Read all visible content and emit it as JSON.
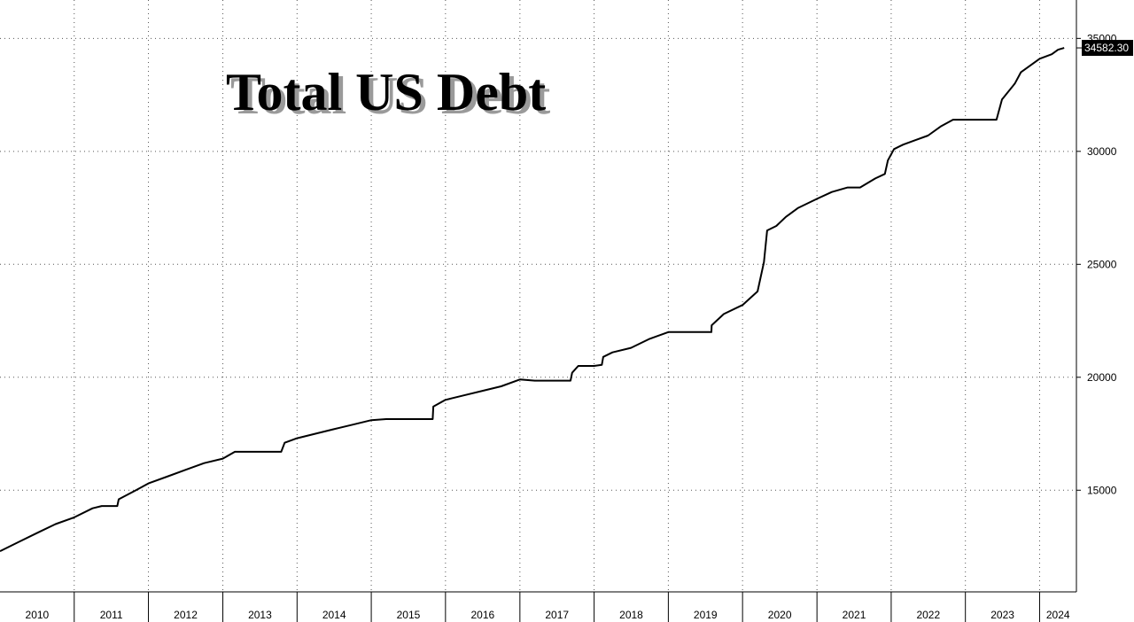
{
  "chart_data": {
    "type": "line",
    "title": "Total US Debt",
    "xlabel": "",
    "ylabel": "",
    "x_tick_labels": [
      "2010",
      "2011",
      "2012",
      "2013",
      "2014",
      "2015",
      "2016",
      "2017",
      "2018",
      "2019",
      "2020",
      "2021",
      "2022",
      "2023",
      "2024"
    ],
    "y_ticks": [
      15000,
      20000,
      25000,
      30000,
      35000
    ],
    "y_tick_labels": [
      "15000",
      "20000",
      "25000",
      "30000",
      "35000"
    ],
    "ylim": [
      10500,
      36700
    ],
    "xlim": [
      "2010-01-01",
      "2024-06-30"
    ],
    "grid": true,
    "last_value_label": "34582.30",
    "series": [
      {
        "x": [
          "2010-01-01",
          "2010-04-01",
          "2010-07-01",
          "2010-10-01",
          "2011-01-01",
          "2011-04-01",
          "2011-05-16",
          "2011-08-01",
          "2011-08-08",
          "2011-11-01",
          "2012-01-01",
          "2012-04-01",
          "2012-07-01",
          "2012-10-01",
          "2013-01-01",
          "2013-03-01",
          "2013-05-01",
          "2013-10-15",
          "2013-11-01",
          "2014-01-01",
          "2014-04-01",
          "2014-07-01",
          "2014-10-01",
          "2015-01-01",
          "2015-03-15",
          "2015-06-01",
          "2015-10-30",
          "2015-11-02",
          "2016-01-01",
          "2016-04-01",
          "2016-07-01",
          "2016-10-01",
          "2017-01-01",
          "2017-03-15",
          "2017-06-01",
          "2017-09-07",
          "2017-09-15",
          "2017-10-15",
          "2017-12-31",
          "2018-01-01",
          "2018-02-08",
          "2018-02-15",
          "2018-04-01",
          "2018-07-01",
          "2018-10-01",
          "2019-01-01",
          "2019-03-01",
          "2019-06-01",
          "2019-08-01",
          "2019-08-02",
          "2019-10-01",
          "2020-01-01",
          "2020-03-15",
          "2020-04-15",
          "2020-05-01",
          "2020-06-15",
          "2020-08-01",
          "2020-10-01",
          "2021-01-01",
          "2021-03-15",
          "2021-06-01",
          "2021-08-01",
          "2021-10-15",
          "2021-12-01",
          "2021-12-16",
          "2022-01-15",
          "2022-03-01",
          "2022-05-01",
          "2022-07-01",
          "2022-09-01",
          "2022-11-01",
          "2023-01-01",
          "2023-03-01",
          "2023-06-03",
          "2023-06-30",
          "2023-09-01",
          "2023-10-01",
          "2024-01-01",
          "2024-03-01",
          "2024-04-01",
          "2024-05-01"
        ],
        "values": [
          12300,
          12700,
          13100,
          13500,
          13800,
          14200,
          14300,
          14300,
          14600,
          15000,
          15300,
          15600,
          15900,
          16200,
          16400,
          16700,
          16700,
          16700,
          17100,
          17300,
          17500,
          17700,
          17900,
          18100,
          18150,
          18150,
          18150,
          18700,
          19000,
          19200,
          19400,
          19600,
          19900,
          19850,
          19850,
          19850,
          20200,
          20500,
          20500,
          20500,
          20550,
          20900,
          21100,
          21300,
          21700,
          22000,
          22000,
          22000,
          22000,
          22300,
          22800,
          23200,
          23800,
          25100,
          26500,
          26700,
          27100,
          27500,
          27900,
          28200,
          28400,
          28400,
          28800,
          29000,
          29600,
          30100,
          30300,
          30500,
          30700,
          31100,
          31400,
          31400,
          31400,
          31400,
          32300,
          33000,
          33500,
          34100,
          34300,
          34500,
          34580
        ]
      }
    ]
  }
}
